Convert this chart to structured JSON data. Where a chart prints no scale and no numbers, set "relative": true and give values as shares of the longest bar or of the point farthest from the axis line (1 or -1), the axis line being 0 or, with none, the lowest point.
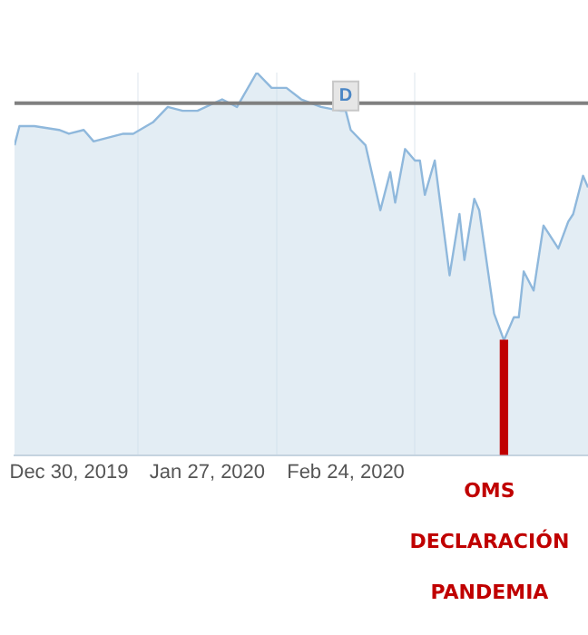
{
  "chart_data": {
    "type": "area",
    "relative": true,
    "x": [
      "2019-12-19",
      "2019-12-20",
      "2019-12-23",
      "2019-12-28",
      "2019-12-30",
      "2020-01-02",
      "2020-01-04",
      "2020-01-07",
      "2020-01-10",
      "2020-01-12",
      "2020-01-16",
      "2020-01-19",
      "2020-01-22",
      "2020-01-25",
      "2020-01-30",
      "2020-02-02",
      "2020-02-06",
      "2020-02-09",
      "2020-02-12",
      "2020-02-15",
      "2020-02-19",
      "2020-02-23",
      "2020-02-24",
      "2020-02-25",
      "2020-02-28",
      "2020-03-02",
      "2020-03-04",
      "2020-03-05",
      "2020-03-07",
      "2020-03-09",
      "2020-03-10",
      "2020-03-11",
      "2020-03-13",
      "2020-03-16",
      "2020-03-18",
      "2020-03-19",
      "2020-03-21",
      "2020-03-22",
      "2020-03-25",
      "2020-03-27",
      "2020-03-29",
      "2020-03-30",
      "2020-03-31",
      "2020-04-02",
      "2020-04-04",
      "2020-04-07",
      "2020-04-09",
      "2020-04-10",
      "2020-04-12",
      "2020-04-13"
    ],
    "series": [
      {
        "type": "bar",
        "x": [
          "2020-03-27"
        ],
        "values": [
          0.3
        ],
        "color": "#c00000"
      },
      {
        "color": "#8fb8dc",
        "values": [
          0.81,
          0.86,
          0.86,
          0.85,
          0.84,
          0.85,
          0.82,
          0.83,
          0.84,
          0.84,
          0.87,
          0.91,
          0.9,
          0.9,
          0.93,
          0.91,
          1,
          0.96,
          0.96,
          0.93,
          0.91,
          0.9,
          0.9,
          0.85,
          0.81,
          0.64,
          0.74,
          0.66,
          0.8,
          0.77,
          0.77,
          0.68,
          0.77,
          0.47,
          0.63,
          0.51,
          0.67,
          0.64,
          0.37,
          0.3,
          0.36,
          0.36,
          0.48,
          0.43,
          0.6,
          0.54,
          0.61,
          0.63,
          0.73,
          0.7
        ]
      }
    ],
    "xlim": [
      "2019-12-19",
      "2020-04-13"
    ],
    "xticks": [
      {
        "value": "2019-12-30",
        "label": "Dec 30, 2019"
      },
      {
        "value": "2020-01-27",
        "label": "Jan 27, 2020"
      },
      {
        "value": "2020-02-24",
        "label": "Feb 24, 2020"
      }
    ],
    "grid": "x",
    "ref_lines": [
      {
        "axis": "y",
        "value": 0.92,
        "color": "#808080"
      }
    ],
    "annotations": [
      {
        "text": "D",
        "x": "2020-02-24",
        "y": 0.92
      },
      "OMS DECLARACIÓN PANDEMIA"
    ]
  }
}
